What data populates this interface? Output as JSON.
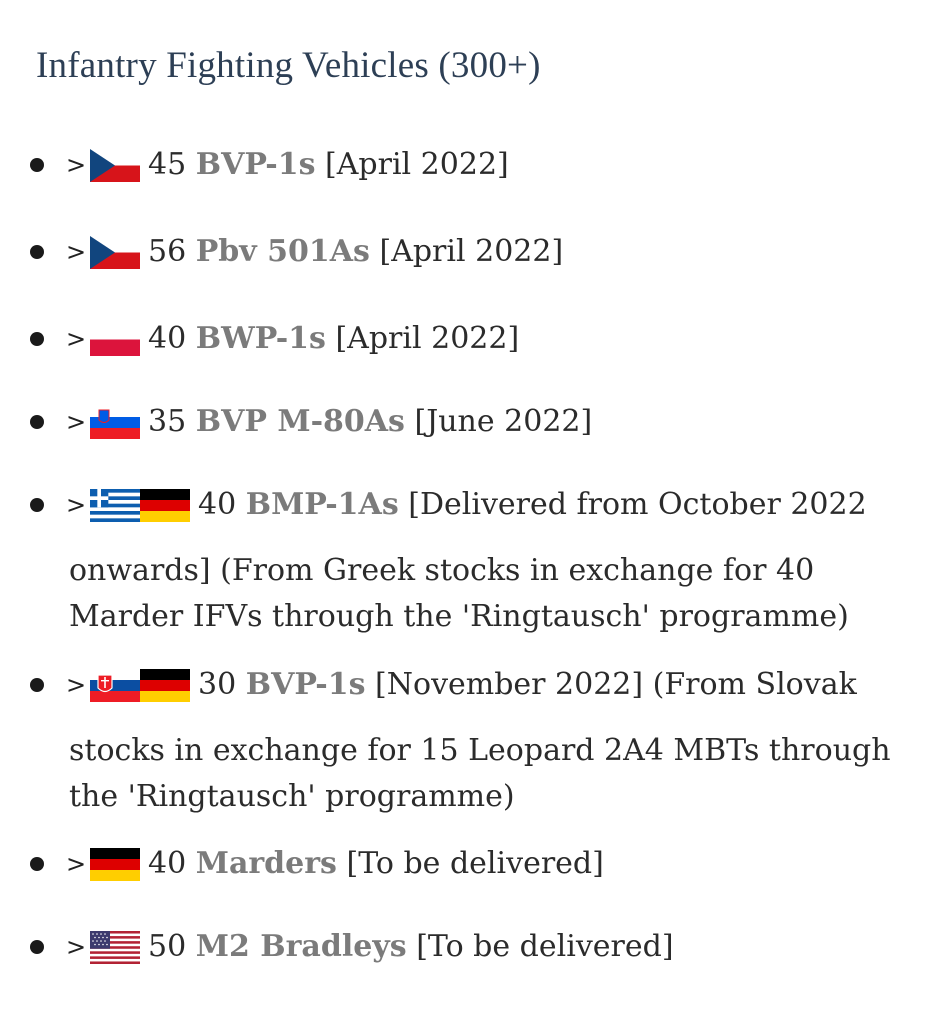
{
  "heading": "Infantry Fighting Vehicles (300+)",
  "chevron": ">",
  "items": [
    {
      "count": "45",
      "name": "BVP-1s",
      "rest": "[April 2022]",
      "flags": [
        "czech-flag-icon"
      ],
      "cont": ""
    },
    {
      "count": "56",
      "name": "Pbv 501As",
      "rest": "[April 2022]",
      "flags": [
        "czech-flag-icon"
      ],
      "cont": ""
    },
    {
      "count": "40",
      "name": "BWP-1s",
      "rest": "[April 2022]",
      "flags": [
        "poland-flag-icon"
      ],
      "cont": ""
    },
    {
      "count": "35",
      "name": "BVP M-80As",
      "rest": "[June 2022]",
      "flags": [
        "slovenia-flag-icon"
      ],
      "cont": ""
    },
    {
      "count": "40",
      "name": "BMP-1As",
      "rest": "[Delivered from October 2022",
      "flags": [
        "greece-flag-icon",
        "germany-flag-icon"
      ],
      "cont": "onwards] (From Greek stocks in exchange for 40 Marder IFVs through the 'Ringtausch' programme)"
    },
    {
      "count": "30",
      "name": "BVP-1s",
      "rest": "[November 2022] (From Slovak",
      "flags": [
        "slovakia-flag-icon",
        "germany-flag-icon"
      ],
      "cont": "stocks in exchange for 15 Leopard 2A4 MBTs through the 'Ringtausch' programme)"
    },
    {
      "count": "40",
      "name": "Marders",
      "rest": "[To be delivered]",
      "flags": [
        "germany-flag-icon"
      ],
      "cont": ""
    },
    {
      "count": "50",
      "name": "M2 Bradleys",
      "rest": "[To be delivered]",
      "flags": [
        "usa-flag-icon"
      ],
      "cont": ""
    }
  ],
  "colors": {
    "heading": "#2d3f55",
    "link": "#7b7b7b",
    "text": "#2b2b2b"
  }
}
